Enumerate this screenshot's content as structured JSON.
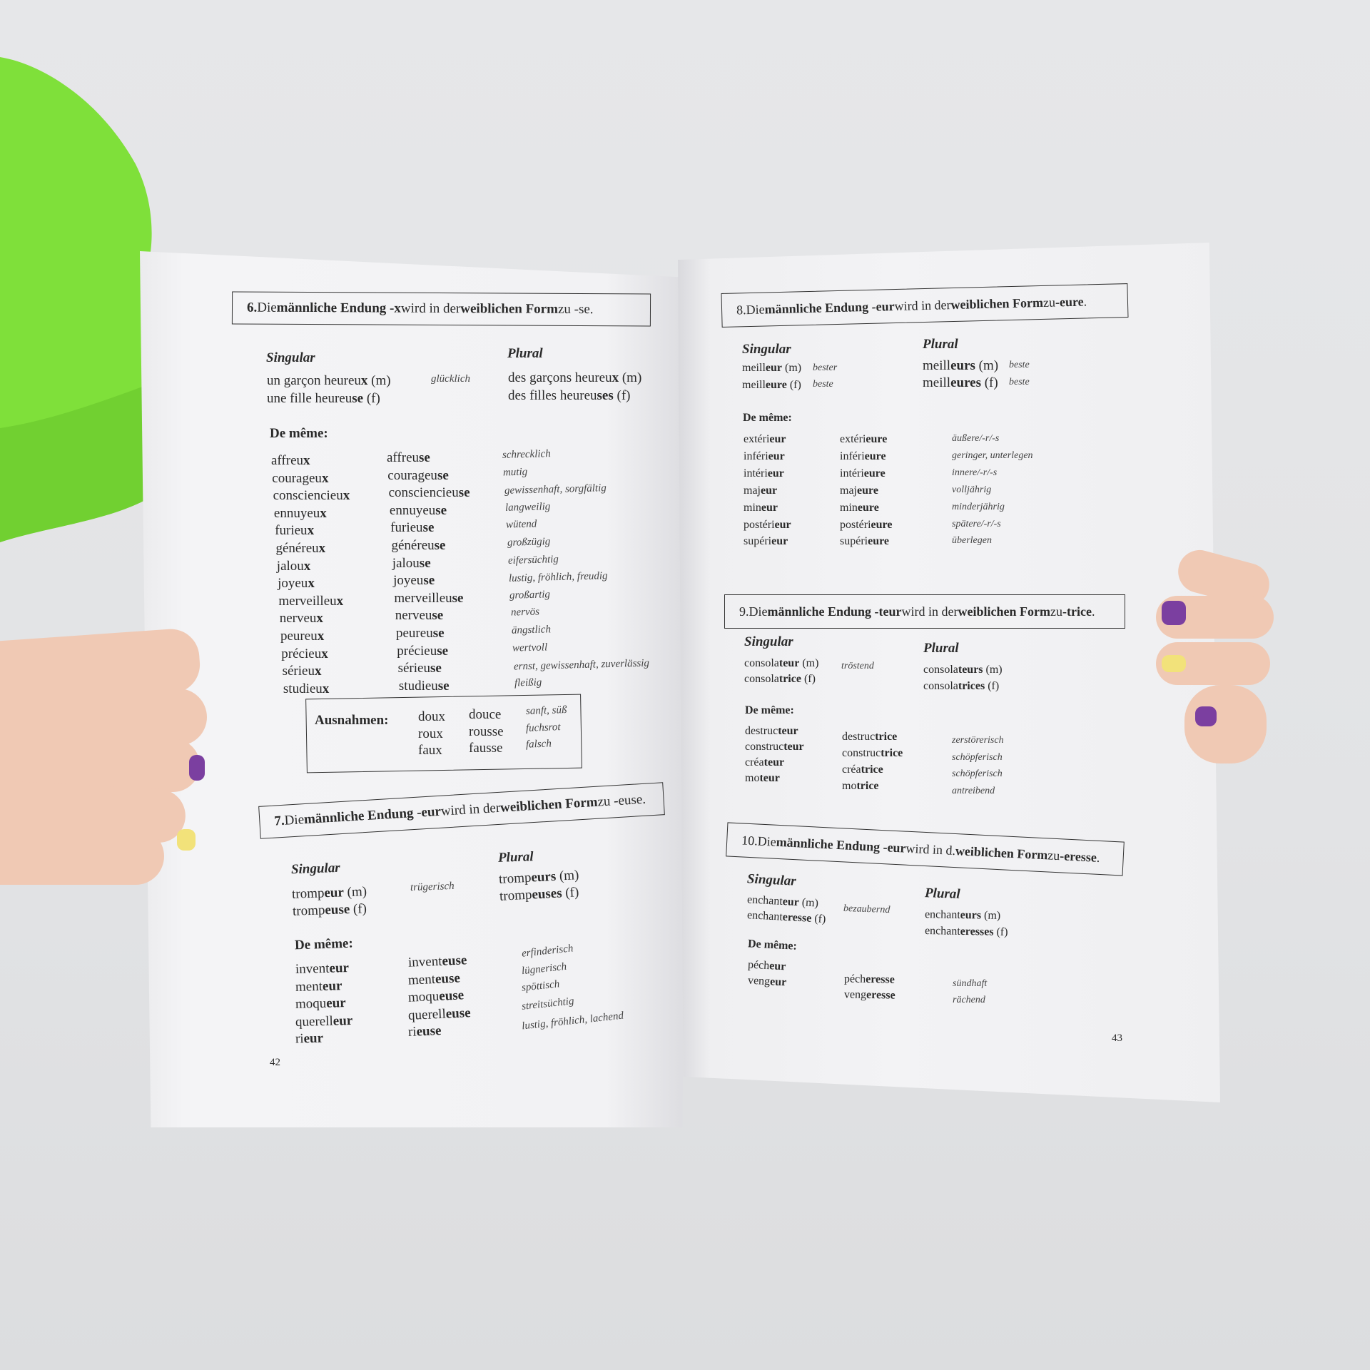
{
  "colors": {
    "background": "#e3e4e6",
    "sleeve": "#7fe03a",
    "paper": "#f2f2f4",
    "ink": "#2a2a2a",
    "nail_purple": "#7b3fa0",
    "nail_yellow": "#f2e27a",
    "skin": "#f0c9b4"
  },
  "left_page": {
    "page_number": "42",
    "section6": {
      "header": [
        [
          "6.",
          true
        ],
        [
          " Die ",
          false
        ],
        [
          "männliche Endung -x",
          true
        ],
        [
          " wird in der ",
          false
        ],
        [
          "weiblichen Form",
          true
        ],
        [
          " zu -se.",
          false
        ]
      ],
      "singular_label": "Singular",
      "plural_label": "Plural",
      "singular": [
        [
          "un garçon heureu",
          "x",
          " (m)"
        ],
        [
          "une fille heureu",
          "se",
          " (f)"
        ]
      ],
      "gloss": "glücklich",
      "plural": [
        [
          "des garçons heureu",
          "x",
          " (m)"
        ],
        [
          "des filles heureu",
          "ses",
          " (f)"
        ]
      ],
      "de_meme": "De même:",
      "words": [
        {
          "m": [
            "affreu",
            "x"
          ],
          "f": [
            "affreu",
            "se"
          ],
          "gloss": "schrecklich"
        },
        {
          "m": [
            "courageu",
            "x"
          ],
          "f": [
            "courageu",
            "se"
          ],
          "gloss": "mutig"
        },
        {
          "m": [
            "consciencieu",
            "x"
          ],
          "f": [
            "consciencieu",
            "se"
          ],
          "gloss": "gewissenhaft, sorgfältig"
        },
        {
          "m": [
            "ennuyeu",
            "x"
          ],
          "f": [
            "ennuyeu",
            "se"
          ],
          "gloss": "langweilig"
        },
        {
          "m": [
            "furieu",
            "x"
          ],
          "f": [
            "furieu",
            "se"
          ],
          "gloss": "wütend"
        },
        {
          "m": [
            "généreu",
            "x"
          ],
          "f": [
            "généreu",
            "se"
          ],
          "gloss": "großzügig"
        },
        {
          "m": [
            "jalou",
            "x"
          ],
          "f": [
            "jalou",
            "se"
          ],
          "gloss": "eifersüchtig"
        },
        {
          "m": [
            "joyeu",
            "x"
          ],
          "f": [
            "joyeu",
            "se"
          ],
          "gloss": "lustig, fröhlich, freudig"
        },
        {
          "m": [
            "merveilleu",
            "x"
          ],
          "f": [
            "merveilleu",
            "se"
          ],
          "gloss": "großartig"
        },
        {
          "m": [
            "nerveu",
            "x"
          ],
          "f": [
            "nerveu",
            "se"
          ],
          "gloss": "nervös"
        },
        {
          "m": [
            "peureu",
            "x"
          ],
          "f": [
            "peureu",
            "se"
          ],
          "gloss": "ängstlich"
        },
        {
          "m": [
            "précieu",
            "x"
          ],
          "f": [
            "précieu",
            "se"
          ],
          "gloss": "wertvoll"
        },
        {
          "m": [
            "sérieu",
            "x"
          ],
          "f": [
            "sérieu",
            "se"
          ],
          "gloss": "ernst, gewissenhaft, zuverlässig"
        },
        {
          "m": [
            "studieu",
            "x"
          ],
          "f": [
            "studieu",
            "se"
          ],
          "gloss": "fleißig"
        }
      ],
      "exceptions": {
        "label": "Ausnahmen:",
        "rows": [
          {
            "m": "doux",
            "f": "douce",
            "gloss": "sanft, süß"
          },
          {
            "m": "roux",
            "f": "rousse",
            "gloss": "fuchsrot"
          },
          {
            "m": "faux",
            "f": "fausse",
            "gloss": "falsch"
          }
        ]
      }
    },
    "section7": {
      "header": [
        [
          "7.",
          true
        ],
        [
          " Die ",
          false
        ],
        [
          "männliche Endung -eur",
          true
        ],
        [
          " wird in der ",
          false
        ],
        [
          "weiblichen Form",
          true
        ],
        [
          " zu -euse.",
          false
        ]
      ],
      "singular_label": "Singular",
      "plural_label": "Plural",
      "singular": [
        [
          "tromp",
          "eur",
          " (m)"
        ],
        [
          "tromp",
          "euse",
          " (f)"
        ]
      ],
      "gloss": "trügerisch",
      "plural": [
        [
          "tromp",
          "eurs",
          " (m)"
        ],
        [
          "tromp",
          "euses",
          " (f)"
        ]
      ],
      "de_meme": "De même:",
      "words": [
        {
          "m": [
            "invent",
            "eur"
          ],
          "f": [
            "invent",
            "euse"
          ],
          "gloss": "erfinderisch"
        },
        {
          "m": [
            "ment",
            "eur"
          ],
          "f": [
            "ment",
            "euse"
          ],
          "gloss": "lügnerisch"
        },
        {
          "m": [
            "moqu",
            "eur"
          ],
          "f": [
            "moqu",
            "euse"
          ],
          "gloss": "spöttisch"
        },
        {
          "m": [
            "querell",
            "eur"
          ],
          "f": [
            "querell",
            "euse"
          ],
          "gloss": "streitsüchtig"
        },
        {
          "m": [
            "ri",
            "eur"
          ],
          "f": [
            "ri",
            "euse"
          ],
          "gloss": "lustig, fröhlich, lachend"
        }
      ]
    }
  },
  "right_page": {
    "page_number": "43",
    "section8": {
      "header": [
        [
          "8.",
          false
        ],
        [
          " Die ",
          false
        ],
        [
          "männliche Endung -eur",
          true
        ],
        [
          " wird in der ",
          false
        ],
        [
          "weiblichen Form",
          true
        ],
        [
          " zu ",
          false
        ],
        [
          "-eure",
          true
        ],
        [
          ".",
          false
        ]
      ],
      "singular_label": "Singular",
      "plural_label": "Plural",
      "singular": [
        [
          "meill",
          "eur",
          " (m)"
        ],
        [
          "meill",
          "eure",
          " (f)"
        ]
      ],
      "singular_gloss": [
        "bester",
        "beste"
      ],
      "plural": [
        [
          "meill",
          "eurs",
          " (m)"
        ],
        [
          "meill",
          "eures",
          " (f)"
        ]
      ],
      "plural_gloss": [
        "beste",
        "beste"
      ],
      "de_meme": "De même:",
      "words": [
        {
          "m": [
            "extéri",
            "eur"
          ],
          "f": [
            "extéri",
            "eure"
          ],
          "gloss": "äußere/-r/-s"
        },
        {
          "m": [
            "inféri",
            "eur"
          ],
          "f": [
            "inféri",
            "eure"
          ],
          "gloss": "geringer, unterlegen"
        },
        {
          "m": [
            "intéri",
            "eur"
          ],
          "f": [
            "intéri",
            "eure"
          ],
          "gloss": "innere/-r/-s"
        },
        {
          "m": [
            "maj",
            "eur"
          ],
          "f": [
            "maj",
            "eure"
          ],
          "gloss": "volljährig"
        },
        {
          "m": [
            "min",
            "eur"
          ],
          "f": [
            "min",
            "eure"
          ],
          "gloss": "minderjährig"
        },
        {
          "m": [
            "postéri",
            "eur"
          ],
          "f": [
            "postéri",
            "eure"
          ],
          "gloss": "spätere/-r/-s"
        },
        {
          "m": [
            "supéri",
            "eur"
          ],
          "f": [
            "supéri",
            "eure"
          ],
          "gloss": "überlegen"
        }
      ]
    },
    "section9": {
      "header": [
        [
          "9.",
          false
        ],
        [
          " Die ",
          false
        ],
        [
          "männliche Endung -teur",
          true
        ],
        [
          " wird in der ",
          false
        ],
        [
          "weiblichen Form",
          true
        ],
        [
          " zu ",
          false
        ],
        [
          "-trice",
          true
        ],
        [
          ".",
          false
        ]
      ],
      "singular_label": "Singular",
      "plural_label": "Plural",
      "singular": [
        [
          "consola",
          "teur",
          " (m)"
        ],
        [
          "consola",
          "trice",
          " (f)"
        ]
      ],
      "gloss": "tröstend",
      "plural": [
        [
          "consola",
          "teurs",
          " (m)"
        ],
        [
          "consola",
          "trices",
          " (f)"
        ]
      ],
      "de_meme": "De même:",
      "words": [
        {
          "m": [
            "destruc",
            "teur"
          ],
          "f": [
            "destruc",
            "trice"
          ],
          "gloss": "zerstörerisch"
        },
        {
          "m": [
            "construc",
            "teur"
          ],
          "f": [
            "construc",
            "trice"
          ],
          "gloss": "schöpferisch"
        },
        {
          "m": [
            "créa",
            "teur"
          ],
          "f": [
            "créa",
            "trice"
          ],
          "gloss": "schöpferisch"
        },
        {
          "m": [
            "mo",
            "teur"
          ],
          "f": [
            "mo",
            "trice"
          ],
          "gloss": "antreibend"
        }
      ]
    },
    "section10": {
      "header": [
        [
          "10.",
          false
        ],
        [
          " Die ",
          false
        ],
        [
          "männliche Endung -eur",
          true
        ],
        [
          " wird in d. ",
          false
        ],
        [
          "weiblichen Form",
          true
        ],
        [
          " zu ",
          false
        ],
        [
          "-eresse",
          true
        ],
        [
          ".",
          false
        ]
      ],
      "singular_label": "Singular",
      "plural_label": "Plural",
      "singular": [
        [
          "enchant",
          "eur",
          " (m)"
        ],
        [
          "enchant",
          "eresse",
          " (f)"
        ]
      ],
      "gloss": "bezaubernd",
      "plural": [
        [
          "enchant",
          "eurs",
          " (m)"
        ],
        [
          "enchant",
          "eresses",
          " (f)"
        ]
      ],
      "de_meme": "De même:",
      "words": [
        {
          "m": [
            "péch",
            "eur"
          ],
          "f": [
            "péch",
            "eresse"
          ],
          "gloss": "sündhaft"
        },
        {
          "m": [
            "veng",
            "eur"
          ],
          "f": [
            "veng",
            "eresse"
          ],
          "gloss": "rächend"
        }
      ]
    }
  }
}
